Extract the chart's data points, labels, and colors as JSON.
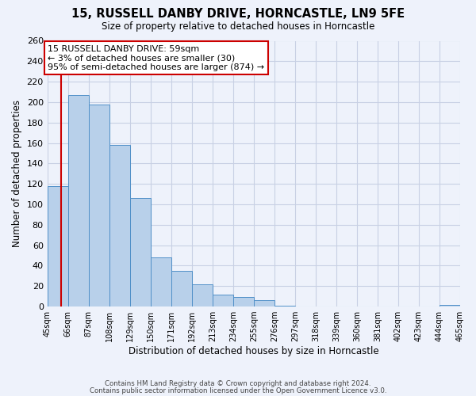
{
  "title": "15, RUSSELL DANBY DRIVE, HORNCASTLE, LN9 5FE",
  "subtitle": "Size of property relative to detached houses in Horncastle",
  "xlabel": "Distribution of detached houses by size in Horncastle",
  "ylabel": "Number of detached properties",
  "bar_values": [
    118,
    207,
    198,
    158,
    106,
    48,
    35,
    22,
    12,
    9,
    6,
    1,
    0,
    0,
    0,
    0,
    0,
    0,
    0,
    2
  ],
  "bin_edges": [
    45,
    66,
    87,
    108,
    129,
    150,
    171,
    192,
    213,
    234,
    255,
    276,
    297,
    318,
    339,
    360,
    381,
    402,
    423,
    444,
    465
  ],
  "tick_labels": [
    "45sqm",
    "66sqm",
    "87sqm",
    "108sqm",
    "129sqm",
    "150sqm",
    "171sqm",
    "192sqm",
    "213sqm",
    "234sqm",
    "255sqm",
    "276sqm",
    "297sqm",
    "318sqm",
    "339sqm",
    "360sqm",
    "381sqm",
    "402sqm",
    "423sqm",
    "444sqm",
    "465sqm"
  ],
  "bar_color": "#b8d0ea",
  "bar_edge_color": "#5090c8",
  "property_line_x": 59,
  "property_line_color": "#cc0000",
  "annotation_title": "15 RUSSELL DANBY DRIVE: 59sqm",
  "annotation_line1": "← 3% of detached houses are smaller (30)",
  "annotation_line2": "95% of semi-detached houses are larger (874) →",
  "annotation_box_color": "#ffffff",
  "annotation_box_edge": "#cc0000",
  "ylim": [
    0,
    260
  ],
  "yticks": [
    0,
    20,
    40,
    60,
    80,
    100,
    120,
    140,
    160,
    180,
    200,
    220,
    240,
    260
  ],
  "bg_color": "#eef2fb",
  "grid_color": "#c8d0e4",
  "footer1": "Contains HM Land Registry data © Crown copyright and database right 2024.",
  "footer2": "Contains public sector information licensed under the Open Government Licence v3.0."
}
